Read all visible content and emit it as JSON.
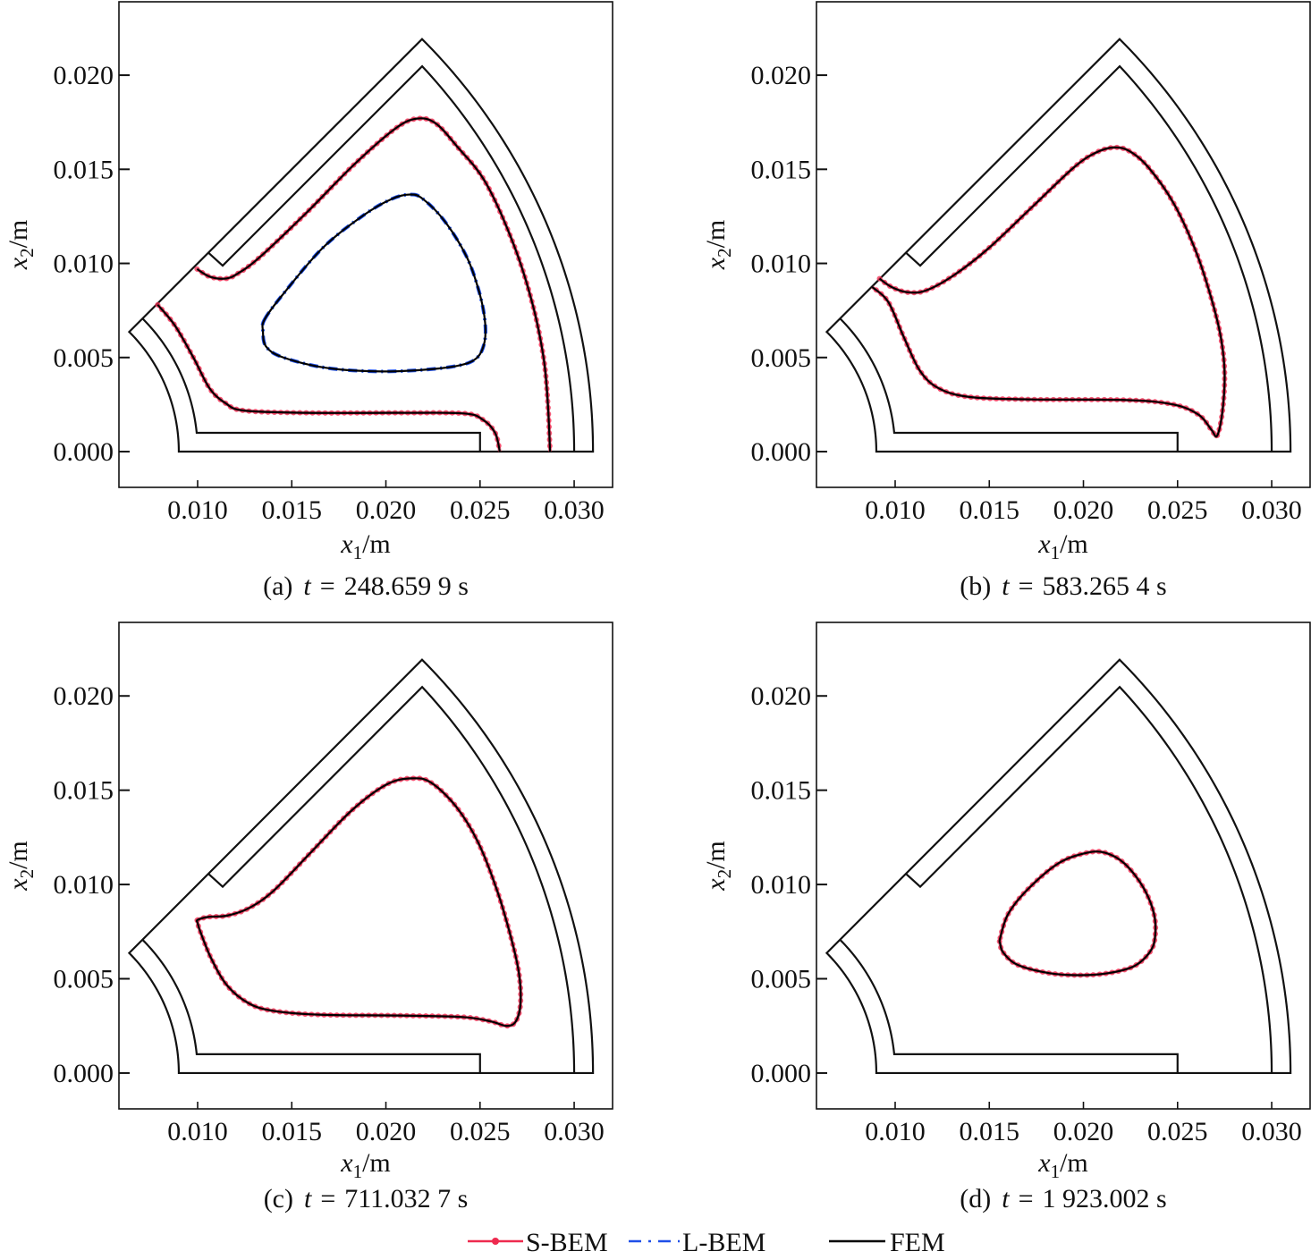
{
  "legend": [
    {
      "name": "S-BEM",
      "color": "#ee2a4f",
      "style": "solid line with dot markers"
    },
    {
      "name": "L-BEM",
      "color": "#1f4fe8",
      "style": "dash-dot"
    },
    {
      "name": "FEM",
      "color": "#000000",
      "style": "solid"
    }
  ],
  "domain": {
    "r_inner": 0.009,
    "r_outer": 0.031,
    "r_cavity_inner": 0.01,
    "r_cavity_outer": 0.03,
    "sector_angle_deg": 45,
    "insert_corner": [
      0.025,
      0.001
    ],
    "notch": [
      [
        0.01057,
        0.01057
      ],
      [
        0.01133,
        0.00988
      ]
    ]
  },
  "chart_data": [
    {
      "panel": "a",
      "type": "line",
      "caption": {
        "label": "(a)",
        "var": "t",
        "eq": "=",
        "value": "248.659 9 s"
      },
      "xlabel": {
        "var": "x",
        "sub": "1",
        "unit": "/m"
      },
      "ylabel": {
        "var": "x",
        "sub": "2",
        "unit": "/m"
      },
      "xlim": [
        0.00582,
        0.03204
      ],
      "ylim": [
        -0.0019,
        0.0239
      ],
      "xticks": [
        0.01,
        0.015,
        0.02,
        0.025,
        0.03
      ],
      "xtick_labels": [
        "0.010",
        "0.015",
        "0.020",
        "0.025",
        "0.030"
      ],
      "yticks": [
        0.0,
        0.005,
        0.01,
        0.015,
        0.02
      ],
      "ytick_labels": [
        "0.000",
        "0.005",
        "0.010",
        "0.015",
        "0.020"
      ],
      "interfaces": [
        {
          "methods": [
            "S-BEM",
            "FEM"
          ],
          "closed": false,
          "points": [
            [
              0.00997,
              0.0097
            ],
            [
              0.01063,
              0.0093
            ],
            [
              0.01147,
              0.00919
            ],
            [
              0.01213,
              0.00946
            ],
            [
              0.0133,
              0.01033
            ],
            [
              0.0158,
              0.01271
            ],
            [
              0.0183,
              0.01524
            ],
            [
              0.02047,
              0.01714
            ],
            [
              0.02163,
              0.01769
            ],
            [
              0.02263,
              0.01745
            ],
            [
              0.0238,
              0.01619
            ],
            [
              0.0253,
              0.01429
            ],
            [
              0.0268,
              0.01097
            ],
            [
              0.0278,
              0.0078
            ],
            [
              0.02838,
              0.00495
            ],
            [
              0.0286,
              0.00258
            ],
            [
              0.02872,
              0.0
            ]
          ]
        },
        {
          "methods": [
            "S-BEM",
            "FEM"
          ],
          "closed": false,
          "points": [
            [
              0.00788,
              0.0078
            ],
            [
              0.0088,
              0.00669
            ],
            [
              0.0098,
              0.00495
            ],
            [
              0.01063,
              0.00337
            ],
            [
              0.01147,
              0.00258
            ],
            [
              0.01247,
              0.00218
            ],
            [
              0.0158,
              0.00206
            ],
            [
              0.0208,
              0.00206
            ],
            [
              0.02413,
              0.00203
            ],
            [
              0.02513,
              0.00171
            ],
            [
              0.0258,
              0.001
            ],
            [
              0.02605,
              0.0
            ]
          ]
        },
        {
          "methods": [
            "L-BEM",
            "FEM"
          ],
          "closed": true,
          "points": [
            [
              0.01355,
              0.00701
            ],
            [
              0.01447,
              0.00828
            ],
            [
              0.01663,
              0.01081
            ],
            [
              0.0188,
              0.01255
            ],
            [
              0.0203,
              0.01342
            ],
            [
              0.0213,
              0.01366
            ],
            [
              0.02197,
              0.01342
            ],
            [
              0.02313,
              0.01223
            ],
            [
              0.0243,
              0.01033
            ],
            [
              0.02497,
              0.00843
            ],
            [
              0.02527,
              0.00685
            ],
            [
              0.02522,
              0.00574
            ],
            [
              0.0248,
              0.00495
            ],
            [
              0.0238,
              0.00456
            ],
            [
              0.02163,
              0.00432
            ],
            [
              0.01913,
              0.00427
            ],
            [
              0.01663,
              0.00448
            ],
            [
              0.01447,
              0.00503
            ],
            [
              0.01363,
              0.00559
            ],
            [
              0.01347,
              0.00638
            ]
          ]
        }
      ]
    },
    {
      "panel": "b",
      "type": "line",
      "caption": {
        "label": "(b)",
        "var": "t",
        "eq": "=",
        "value": "583.265 4 s"
      },
      "xlabel": {
        "var": "x",
        "sub": "1",
        "unit": "/m"
      },
      "ylabel": {
        "var": "x",
        "sub": "2",
        "unit": "/m"
      },
      "xlim": [
        0.00582,
        0.03204
      ],
      "ylim": [
        -0.0019,
        0.0239
      ],
      "xticks": [
        0.01,
        0.015,
        0.02,
        0.025,
        0.03
      ],
      "xtick_labels": [
        "0.010",
        "0.015",
        "0.020",
        "0.025",
        "0.030"
      ],
      "yticks": [
        0.0,
        0.005,
        0.01,
        0.015,
        0.02
      ],
      "ytick_labels": [
        "0.000",
        "0.005",
        "0.010",
        "0.015",
        "0.020"
      ],
      "interfaces": [
        {
          "methods": [
            "S-BEM",
            "FEM"
          ],
          "closed": false,
          "points": [
            [
              0.00917,
              0.00919
            ],
            [
              0.0098,
              0.00875
            ],
            [
              0.01063,
              0.00847
            ],
            [
              0.01163,
              0.00856
            ],
            [
              0.01313,
              0.00938
            ],
            [
              0.01497,
              0.01081
            ],
            [
              0.0173,
              0.01302
            ],
            [
              0.01947,
              0.01508
            ],
            [
              0.02063,
              0.01587
            ],
            [
              0.02163,
              0.01616
            ],
            [
              0.02247,
              0.01595
            ],
            [
              0.02347,
              0.01508
            ],
            [
              0.0248,
              0.01318
            ],
            [
              0.02597,
              0.01065
            ],
            [
              0.0268,
              0.00812
            ],
            [
              0.0273,
              0.00606
            ],
            [
              0.0275,
              0.00416
            ],
            [
              0.02738,
              0.0021
            ],
            [
              0.0271,
              0.00084
            ],
            [
              0.0268,
              0.00116
            ],
            [
              0.02613,
              0.00195
            ],
            [
              0.0248,
              0.0025
            ],
            [
              0.0223,
              0.00274
            ],
            [
              0.0173,
              0.00277
            ],
            [
              0.01397,
              0.0029
            ],
            [
              0.0123,
              0.00337
            ],
            [
              0.0113,
              0.00432
            ],
            [
              0.01047,
              0.00606
            ],
            [
              0.00963,
              0.00796
            ],
            [
              0.00877,
              0.00875
            ]
          ]
        }
      ]
    },
    {
      "panel": "c",
      "type": "line",
      "caption": {
        "label": "(c)",
        "var": "t",
        "eq": "=",
        "value": "711.032 7 s"
      },
      "xlabel": {
        "var": "x",
        "sub": "1",
        "unit": "/m"
      },
      "ylabel": {
        "var": "x",
        "sub": "2",
        "unit": "/m"
      },
      "xlim": [
        0.00582,
        0.03204
      ],
      "ylim": [
        -0.0019,
        0.0239
      ],
      "xticks": [
        0.01,
        0.015,
        0.02,
        0.025,
        0.03
      ],
      "xtick_labels": [
        "0.010",
        "0.015",
        "0.020",
        "0.025",
        "0.030"
      ],
      "yticks": [
        0.0,
        0.005,
        0.01,
        0.015,
        0.02
      ],
      "ytick_labels": [
        "0.000",
        "0.005",
        "0.010",
        "0.015",
        "0.020"
      ],
      "interfaces": [
        {
          "methods": [
            "S-BEM",
            "FEM"
          ],
          "closed": true,
          "points": [
            [
              0.01,
              0.00812
            ],
            [
              0.01057,
              0.00828
            ],
            [
              0.01157,
              0.00835
            ],
            [
              0.01273,
              0.00875
            ],
            [
              0.01407,
              0.0097
            ],
            [
              0.01607,
              0.01176
            ],
            [
              0.01823,
              0.01397
            ],
            [
              0.02007,
              0.01532
            ],
            [
              0.0214,
              0.01563
            ],
            [
              0.0224,
              0.0154
            ],
            [
              0.02373,
              0.01413
            ],
            [
              0.0249,
              0.01223
            ],
            [
              0.0259,
              0.0097
            ],
            [
              0.02665,
              0.00717
            ],
            [
              0.02707,
              0.00527
            ],
            [
              0.02715,
              0.00369
            ],
            [
              0.0269,
              0.00274
            ],
            [
              0.0264,
              0.0025
            ],
            [
              0.02557,
              0.00274
            ],
            [
              0.02407,
              0.00297
            ],
            [
              0.02073,
              0.00305
            ],
            [
              0.01657,
              0.00309
            ],
            [
              0.01407,
              0.00329
            ],
            [
              0.01273,
              0.00369
            ],
            [
              0.01157,
              0.00464
            ],
            [
              0.01073,
              0.00606
            ],
            [
              0.01015,
              0.00748
            ],
            [
              0.01,
              0.00796
            ]
          ]
        }
      ]
    },
    {
      "panel": "d",
      "type": "line",
      "caption": {
        "label": "(d)",
        "var": "t",
        "eq": "=",
        "value": "1 923.002 s"
      },
      "xlabel": {
        "var": "x",
        "sub": "1",
        "unit": "/m"
      },
      "ylabel": {
        "var": "x",
        "sub": "2",
        "unit": "/m"
      },
      "xlim": [
        0.00582,
        0.03204
      ],
      "ylim": [
        -0.0019,
        0.0239
      ],
      "xticks": [
        0.01,
        0.015,
        0.02,
        0.025,
        0.03
      ],
      "xtick_labels": [
        "0.010",
        "0.015",
        "0.020",
        "0.025",
        "0.030"
      ],
      "yticks": [
        0.0,
        0.005,
        0.01,
        0.015,
        0.02
      ],
      "ytick_labels": [
        "0.000",
        "0.005",
        "0.010",
        "0.015",
        "0.020"
      ],
      "interfaces": [
        {
          "methods": [
            "S-BEM",
            "FEM"
          ],
          "closed": true,
          "points": [
            [
              0.01558,
              0.00717
            ],
            [
              0.016,
              0.00843
            ],
            [
              0.017,
              0.0097
            ],
            [
              0.01867,
              0.01112
            ],
            [
              0.02017,
              0.01168
            ],
            [
              0.02117,
              0.01168
            ],
            [
              0.02217,
              0.01112
            ],
            [
              0.02317,
              0.00986
            ],
            [
              0.02375,
              0.00843
            ],
            [
              0.0238,
              0.00717
            ],
            [
              0.0235,
              0.00638
            ],
            [
              0.02267,
              0.00566
            ],
            [
              0.02133,
              0.0053
            ],
            [
              0.01983,
              0.00519
            ],
            [
              0.01817,
              0.0053
            ],
            [
              0.0165,
              0.00574
            ],
            [
              0.01575,
              0.00638
            ],
            [
              0.01558,
              0.00685
            ]
          ]
        }
      ]
    }
  ]
}
